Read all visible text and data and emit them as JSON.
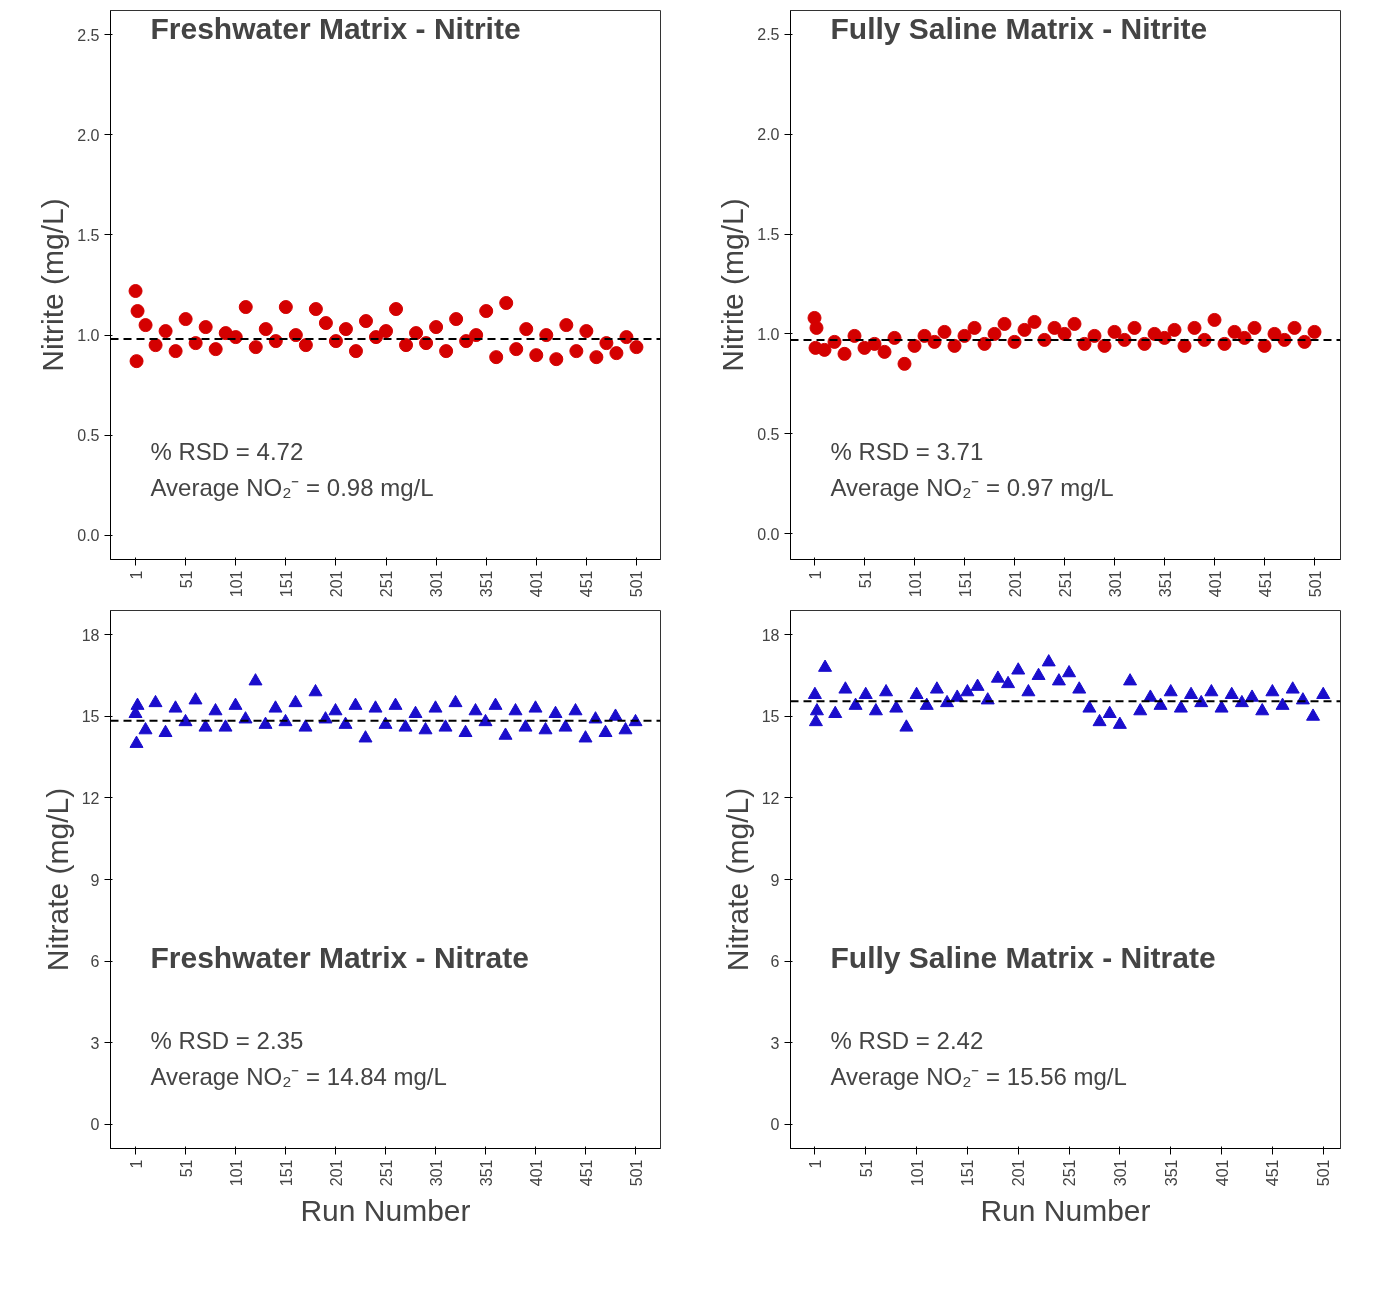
{
  "chart_data": [
    {
      "type": "scatter",
      "title": "Freshwater Matrix - Nitrite",
      "ylabel": "Nitrite (mg/L)",
      "marker": "circle",
      "grid": false,
      "annotations": [
        "% RSD = 4.72",
        "Average NO₂⁻ = 0.98 mg/L"
      ],
      "xlim": [
        -24,
        525
      ],
      "ylim": [
        -0.12,
        2.62
      ],
      "xticks": [
        1,
        51,
        101,
        151,
        201,
        251,
        301,
        351,
        401,
        451,
        501
      ],
      "yticks": [
        {
          "value": 0,
          "label": "0.0"
        },
        {
          "value": 0.5,
          "label": "0.5"
        },
        {
          "value": 1,
          "label": "1.0"
        },
        {
          "value": 1.5,
          "label": "1.5"
        },
        {
          "value": 2,
          "label": "2.0"
        },
        {
          "value": 2.5,
          "label": "2.5"
        }
      ],
      "ref_lines": [
        {
          "axis": "y",
          "value": 0.98,
          "color": "#000000",
          "line_style": "dashed"
        }
      ],
      "series": [
        {
          "color": "#d40000",
          "x": [
            1,
            2,
            3,
            11,
            21,
            31,
            41,
            51,
            61,
            71,
            81,
            91,
            101,
            111,
            121,
            131,
            141,
            151,
            161,
            171,
            181,
            191,
            201,
            211,
            221,
            231,
            241,
            251,
            261,
            271,
            281,
            291,
            301,
            311,
            321,
            331,
            341,
            351,
            361,
            371,
            381,
            391,
            401,
            411,
            421,
            431,
            441,
            451,
            461,
            471,
            481,
            491,
            501
          ],
          "values": [
            1.22,
            0.87,
            1.12,
            1.05,
            0.95,
            1.02,
            0.92,
            1.08,
            0.96,
            1.04,
            0.93,
            1.01,
            0.99,
            1.14,
            0.94,
            1.03,
            0.97,
            1.14,
            1.0,
            0.95,
            1.13,
            1.06,
            0.97,
            1.03,
            0.92,
            1.07,
            0.99,
            1.02,
            1.13,
            0.95,
            1.01,
            0.96,
            1.04,
            0.92,
            1.08,
            0.97,
            1.0,
            1.12,
            0.89,
            1.16,
            0.93,
            1.03,
            0.9,
            1.0,
            0.88,
            1.05,
            0.92,
            1.02,
            0.89,
            0.96,
            0.91,
            0.99,
            0.94
          ]
        }
      ]
    },
    {
      "type": "scatter",
      "title": "Fully Saline Matrix - Nitrite",
      "ylabel": "Nitrite (mg/L)",
      "marker": "circle",
      "grid": false,
      "annotations": [
        "% RSD = 3.71",
        "Average NO₂⁻ = 0.97 mg/L"
      ],
      "xlim": [
        -23,
        527
      ],
      "ylim": [
        -0.13,
        2.62
      ],
      "xticks": [
        1,
        51,
        101,
        151,
        201,
        251,
        301,
        351,
        401,
        451,
        501
      ],
      "yticks": [
        {
          "value": 0,
          "label": "0.0"
        },
        {
          "value": 0.5,
          "label": "0.5"
        },
        {
          "value": 1,
          "label": "1.0"
        },
        {
          "value": 1.5,
          "label": "1.5"
        },
        {
          "value": 2,
          "label": "2.0"
        },
        {
          "value": 2.5,
          "label": "2.5"
        }
      ],
      "ref_lines": [
        {
          "axis": "y",
          "value": 0.97,
          "color": "#000000",
          "line_style": "dashed"
        }
      ],
      "series": [
        {
          "color": "#d40000",
          "x": [
            1,
            2,
            3,
            11,
            21,
            31,
            41,
            51,
            61,
            71,
            81,
            91,
            101,
            111,
            121,
            131,
            141,
            151,
            161,
            171,
            181,
            191,
            201,
            211,
            221,
            231,
            241,
            251,
            261,
            271,
            281,
            291,
            301,
            311,
            321,
            331,
            341,
            351,
            361,
            371,
            381,
            391,
            401,
            411,
            421,
            431,
            441,
            451,
            461,
            471,
            481,
            491,
            501
          ],
          "values": [
            1.08,
            0.93,
            1.03,
            0.92,
            0.96,
            0.9,
            0.99,
            0.93,
            0.95,
            0.91,
            0.98,
            0.85,
            0.94,
            0.99,
            0.96,
            1.01,
            0.94,
            0.99,
            1.03,
            0.95,
            1.0,
            1.05,
            0.96,
            1.02,
            1.06,
            0.97,
            1.03,
            1.0,
            1.05,
            0.95,
            0.99,
            0.94,
            1.01,
            0.97,
            1.03,
            0.95,
            1.0,
            0.98,
            1.02,
            0.94,
            1.03,
            0.97,
            1.07,
            0.95,
            1.01,
            0.98,
            1.03,
            0.94,
            1.0,
            0.97,
            1.03,
            0.96,
            1.01
          ]
        }
      ]
    },
    {
      "type": "scatter",
      "title": "Freshwater Matrix - Nitrate",
      "xlabel": "Run Number",
      "ylabel": "Nitrate (mg/L)",
      "marker": "triangle",
      "grid": false,
      "annotations": [
        "% RSD = 2.35",
        "Average NO₂⁻ = 14.84 mg/L"
      ],
      "xlim": [
        -24,
        526
      ],
      "ylim": [
        -0.9,
        18.9
      ],
      "xticks": [
        1,
        51,
        101,
        151,
        201,
        251,
        301,
        351,
        401,
        451,
        501
      ],
      "yticks": [
        0,
        3,
        6,
        9,
        12,
        15,
        18
      ],
      "ref_lines": [
        {
          "axis": "y",
          "value": 14.84,
          "color": "#000000",
          "line_style": "dashed"
        }
      ],
      "series": [
        {
          "color": "#1a0dcc",
          "x": [
            1,
            2,
            3,
            11,
            21,
            31,
            41,
            51,
            61,
            71,
            81,
            91,
            101,
            111,
            121,
            131,
            141,
            151,
            161,
            171,
            181,
            191,
            201,
            211,
            221,
            231,
            241,
            251,
            261,
            271,
            281,
            291,
            301,
            311,
            321,
            331,
            341,
            351,
            361,
            371,
            381,
            391,
            401,
            411,
            421,
            431,
            441,
            451,
            461,
            471,
            481,
            491,
            501
          ],
          "values": [
            15.1,
            14.0,
            15.4,
            14.5,
            15.5,
            14.4,
            15.3,
            14.8,
            15.6,
            14.6,
            15.2,
            14.6,
            15.4,
            14.9,
            16.3,
            14.7,
            15.3,
            14.8,
            15.5,
            14.6,
            15.9,
            14.9,
            15.2,
            14.7,
            15.4,
            14.2,
            15.3,
            14.7,
            15.4,
            14.6,
            15.1,
            14.5,
            15.3,
            14.6,
            15.5,
            14.4,
            15.2,
            14.8,
            15.4,
            14.3,
            15.2,
            14.6,
            15.3,
            14.5,
            15.1,
            14.6,
            15.2,
            14.2,
            14.9,
            14.4,
            15.0,
            14.5,
            14.8
          ]
        }
      ]
    },
    {
      "type": "scatter",
      "title": "Fully Saline Matrix - Nitrate",
      "xlabel": "Run Number",
      "ylabel": "Nitrate (mg/L)",
      "marker": "triangle",
      "grid": false,
      "annotations": [
        "% RSD = 2.42",
        "Average NO₂⁻ = 15.56 mg/L"
      ],
      "xlim": [
        -23,
        518
      ],
      "ylim": [
        -0.9,
        18.9
      ],
      "xticks": [
        1,
        51,
        101,
        151,
        201,
        251,
        301,
        351,
        401,
        451,
        501
      ],
      "yticks": [
        0,
        3,
        6,
        9,
        12,
        15,
        18
      ],
      "ref_lines": [
        {
          "axis": "y",
          "value": 15.56,
          "color": "#000000",
          "line_style": "dashed"
        }
      ],
      "series": [
        {
          "color": "#1a0dcc",
          "x": [
            1,
            2,
            3,
            11,
            21,
            31,
            41,
            51,
            61,
            71,
            81,
            91,
            101,
            111,
            121,
            131,
            141,
            151,
            161,
            171,
            181,
            191,
            201,
            211,
            221,
            231,
            241,
            251,
            261,
            271,
            281,
            291,
            301,
            311,
            321,
            331,
            341,
            351,
            361,
            371,
            381,
            391,
            401,
            411,
            421,
            431,
            441,
            451,
            461,
            471,
            481,
            491,
            501
          ],
          "values": [
            15.8,
            14.8,
            15.2,
            16.8,
            15.1,
            16.0,
            15.4,
            15.8,
            15.2,
            15.9,
            15.3,
            14.6,
            15.8,
            15.4,
            16.0,
            15.5,
            15.7,
            15.9,
            16.1,
            15.6,
            16.4,
            16.2,
            16.7,
            15.9,
            16.5,
            17.0,
            16.3,
            16.6,
            16.0,
            15.3,
            14.8,
            15.1,
            14.7,
            16.3,
            15.2,
            15.7,
            15.4,
            15.9,
            15.3,
            15.8,
            15.5,
            15.9,
            15.3,
            15.8,
            15.5,
            15.7,
            15.2,
            15.9,
            15.4,
            16.0,
            15.6,
            15.0,
            15.8
          ]
        }
      ]
    }
  ]
}
